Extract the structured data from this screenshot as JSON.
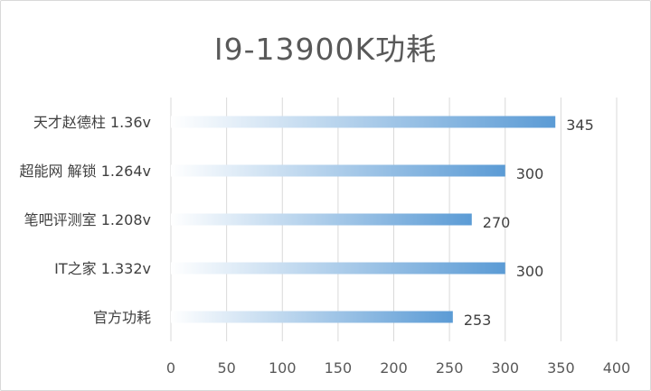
{
  "chart_data": {
    "type": "bar",
    "orientation": "horizontal",
    "title": "I9-13900K功耗",
    "categories": [
      "天才赵德柱 1.36v",
      "超能网 解锁 1.264v",
      "笔吧评测室 1.208v",
      "IT之家 1.332v",
      "官方功耗"
    ],
    "values": [
      345,
      300,
      270,
      300,
      253
    ],
    "xlim": [
      0,
      400
    ],
    "xticks": [
      "0",
      "50",
      "100",
      "150",
      "200",
      "250",
      "300",
      "350",
      "400"
    ],
    "grid": true,
    "legend": "none",
    "colors": {
      "bar_start": "#ffffff",
      "bar_end": "#5b9bd5",
      "grid": "#d9d9d9"
    }
  }
}
